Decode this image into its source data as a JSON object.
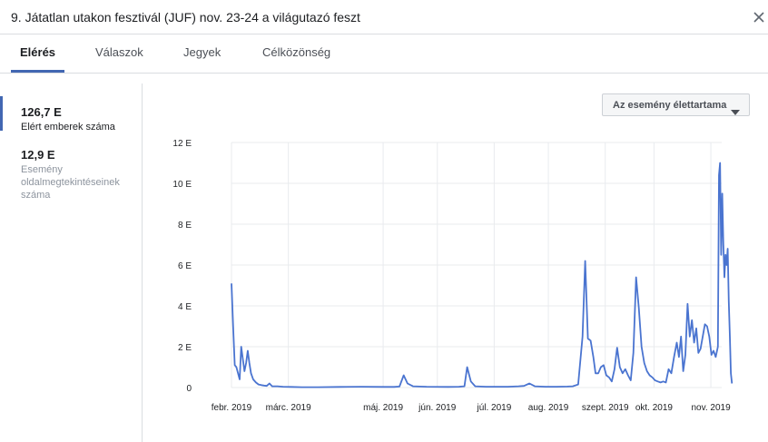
{
  "dialog": {
    "title": "9. Játatlan utakon fesztivál (JUF) nov. 23-24 a világutazó feszt",
    "close_icon": "close-icon"
  },
  "tabs": [
    {
      "label": "Elérés",
      "active": true
    },
    {
      "label": "Válaszok",
      "active": false
    },
    {
      "label": "Jegyek",
      "active": false
    },
    {
      "label": "Célközönség",
      "active": false
    }
  ],
  "metrics": [
    {
      "value": "126,7 E",
      "label": "Elért emberek száma",
      "selected": true
    },
    {
      "value": "12,9 E",
      "label": "Esemény oldalmegtekintéseinek száma",
      "selected": false
    }
  ],
  "filter": {
    "label": "Az esemény élettartama",
    "icon": "caret-down-icon"
  },
  "colors": {
    "accent": "#4267b2",
    "line": "#4a74d0",
    "grid": "#e9ebee"
  },
  "chart_data": {
    "type": "line",
    "y_tick_labels": [
      "0",
      "2 E",
      "4 E",
      "6 E",
      "8 E",
      "10 E",
      "12 E"
    ],
    "ylim": [
      0,
      12000
    ],
    "x_tick_labels": [
      "febr. 2019",
      "márc. 2019",
      "máj. 2019",
      "jún. 2019",
      "júl. 2019",
      "aug. 2019",
      "szept. 2019",
      "okt. 2019",
      "nov. 2019"
    ],
    "x_tick_positions": [
      0,
      1.05,
      2.8,
      3.8,
      4.85,
      5.85,
      6.9,
      7.8,
      8.85
    ],
    "xlim": [
      0,
      9.05
    ],
    "grid": true,
    "series": [
      {
        "values": [
          [
            0.0,
            5100
          ],
          [
            0.03,
            3000
          ],
          [
            0.06,
            1100
          ],
          [
            0.09,
            1000
          ],
          [
            0.12,
            700
          ],
          [
            0.15,
            400
          ],
          [
            0.18,
            2000
          ],
          [
            0.21,
            1400
          ],
          [
            0.24,
            800
          ],
          [
            0.27,
            1200
          ],
          [
            0.3,
            1800
          ],
          [
            0.33,
            1200
          ],
          [
            0.36,
            700
          ],
          [
            0.4,
            400
          ],
          [
            0.45,
            250
          ],
          [
            0.5,
            150
          ],
          [
            0.55,
            120
          ],
          [
            0.6,
            100
          ],
          [
            0.65,
            80
          ],
          [
            0.7,
            200
          ],
          [
            0.75,
            60
          ],
          [
            0.85,
            60
          ],
          [
            0.95,
            40
          ],
          [
            1.1,
            30
          ],
          [
            1.3,
            20
          ],
          [
            1.6,
            20
          ],
          [
            2.0,
            30
          ],
          [
            2.4,
            40
          ],
          [
            2.8,
            30
          ],
          [
            3.0,
            30
          ],
          [
            3.1,
            50
          ],
          [
            3.18,
            600
          ],
          [
            3.25,
            200
          ],
          [
            3.35,
            60
          ],
          [
            3.6,
            40
          ],
          [
            4.0,
            30
          ],
          [
            4.2,
            40
          ],
          [
            4.3,
            60
          ],
          [
            4.35,
            1000
          ],
          [
            4.42,
            300
          ],
          [
            4.5,
            60
          ],
          [
            4.7,
            40
          ],
          [
            4.9,
            40
          ],
          [
            5.1,
            40
          ],
          [
            5.3,
            60
          ],
          [
            5.4,
            80
          ],
          [
            5.5,
            200
          ],
          [
            5.6,
            60
          ],
          [
            5.8,
            40
          ],
          [
            6.0,
            40
          ],
          [
            6.2,
            50
          ],
          [
            6.3,
            60
          ],
          [
            6.4,
            150
          ],
          [
            6.48,
            2500
          ],
          [
            6.53,
            6200
          ],
          [
            6.58,
            2400
          ],
          [
            6.63,
            2300
          ],
          [
            6.68,
            1500
          ],
          [
            6.72,
            700
          ],
          [
            6.77,
            700
          ],
          [
            6.82,
            1000
          ],
          [
            6.87,
            1100
          ],
          [
            6.92,
            600
          ],
          [
            6.97,
            500
          ],
          [
            7.02,
            300
          ],
          [
            7.07,
            900
          ],
          [
            7.12,
            1950
          ],
          [
            7.17,
            1000
          ],
          [
            7.22,
            700
          ],
          [
            7.27,
            900
          ],
          [
            7.32,
            600
          ],
          [
            7.37,
            350
          ],
          [
            7.42,
            1700
          ],
          [
            7.47,
            5400
          ],
          [
            7.52,
            3900
          ],
          [
            7.57,
            2000
          ],
          [
            7.62,
            1200
          ],
          [
            7.67,
            800
          ],
          [
            7.72,
            600
          ],
          [
            7.77,
            500
          ],
          [
            7.82,
            350
          ],
          [
            7.87,
            300
          ],
          [
            7.92,
            250
          ],
          [
            7.97,
            300
          ],
          [
            8.02,
            250
          ],
          [
            8.07,
            900
          ],
          [
            8.12,
            700
          ],
          [
            8.17,
            1500
          ],
          [
            8.22,
            2200
          ],
          [
            8.26,
            1500
          ],
          [
            8.3,
            2500
          ],
          [
            8.34,
            800
          ],
          [
            8.38,
            1600
          ],
          [
            8.42,
            4100
          ],
          [
            8.46,
            2500
          ],
          [
            8.5,
            3300
          ],
          [
            8.54,
            2200
          ],
          [
            8.58,
            2900
          ],
          [
            8.62,
            1700
          ],
          [
            8.66,
            1900
          ],
          [
            8.7,
            2500
          ],
          [
            8.74,
            3100
          ],
          [
            8.78,
            3000
          ],
          [
            8.82,
            2500
          ],
          [
            8.86,
            1600
          ],
          [
            8.9,
            1800
          ],
          [
            8.94,
            1500
          ],
          [
            8.98,
            2000
          ],
          [
            9.0,
            10400
          ],
          [
            9.02,
            11000
          ],
          [
            9.04,
            6500
          ],
          [
            9.06,
            9500
          ],
          [
            9.08,
            7000
          ],
          [
            9.1,
            5400
          ],
          [
            9.12,
            6500
          ],
          [
            9.14,
            6000
          ],
          [
            9.16,
            6800
          ],
          [
            9.18,
            4200
          ],
          [
            9.2,
            2500
          ],
          [
            9.22,
            700
          ],
          [
            9.24,
            200
          ]
        ]
      }
    ]
  }
}
